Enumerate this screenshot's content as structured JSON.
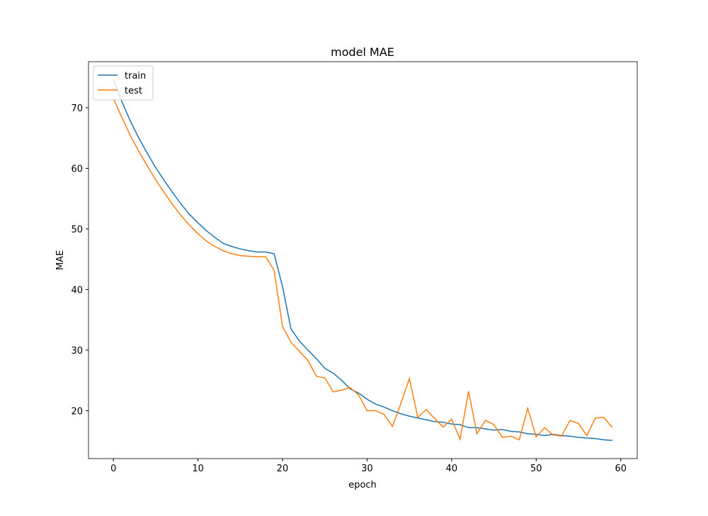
{
  "chart_data": {
    "type": "line",
    "title": "model MAE",
    "x_label": "epoch",
    "y_label": "MAE",
    "x": [
      0,
      1,
      2,
      3,
      4,
      5,
      6,
      7,
      8,
      9,
      10,
      11,
      12,
      13,
      14,
      15,
      16,
      17,
      18,
      19,
      20,
      21,
      22,
      23,
      24,
      25,
      26,
      27,
      28,
      29,
      30,
      31,
      32,
      33,
      34,
      35,
      36,
      37,
      38,
      39,
      40,
      41,
      42,
      43,
      44,
      45,
      46,
      47,
      48,
      49,
      50,
      51,
      52,
      53,
      54,
      55,
      56,
      57,
      58,
      59
    ],
    "series": [
      {
        "name": "train",
        "color": "#1f77b4",
        "values": [
          74.6,
          71,
          67.8,
          65,
          62.5,
          60.1,
          58,
          56,
          54.1,
          52.4,
          51,
          49.7,
          48.6,
          47.6,
          47.1,
          46.7,
          46.4,
          46.2,
          46.2,
          45.9,
          40.5,
          33.5,
          31.5,
          30,
          28.6,
          27,
          26.2,
          25,
          23.6,
          22.9,
          21.9,
          21.1,
          20.6,
          20,
          19.5,
          19.1,
          18.8,
          18.5,
          18.2,
          18.1,
          17.8,
          17.7,
          17.2,
          17.2,
          17,
          16.8,
          16.9,
          16.6,
          16.5,
          16.2,
          16.1,
          15.9,
          16.1,
          15.9,
          15.8,
          15.6,
          15.5,
          15.4,
          15.2,
          15.1
        ]
      },
      {
        "name": "test",
        "color": "#ff7f0e",
        "values": [
          71.5,
          68.4,
          65.4,
          62.8,
          60.4,
          58.1,
          56,
          54,
          52.2,
          50.6,
          49.2,
          48,
          47.1,
          46.4,
          45.9,
          45.6,
          45.5,
          45.4,
          45.4,
          43.2,
          33.9,
          31.3,
          29.8,
          28.3,
          25.7,
          25.4,
          23.1,
          23.4,
          23.8,
          22.6,
          20,
          20,
          19.4,
          17.4,
          21.2,
          25.3,
          18.9,
          20.2,
          18.7,
          17.3,
          18.6,
          15.3,
          23.2,
          16.2,
          18.4,
          17.7,
          15.6,
          15.8,
          15.2,
          20.4,
          15.7,
          17.2,
          16,
          15.8,
          18.4,
          17.9,
          15.9,
          18.8,
          18.9,
          17.2
        ]
      }
    ],
    "xlim": [
      -2.95,
      61.95
    ],
    "ylim": [
      12.1,
      77.6
    ],
    "xticks": [
      0,
      10,
      20,
      30,
      40,
      50,
      60
    ],
    "yticks": [
      20,
      30,
      40,
      50,
      60,
      70
    ],
    "legend": "upper left"
  }
}
